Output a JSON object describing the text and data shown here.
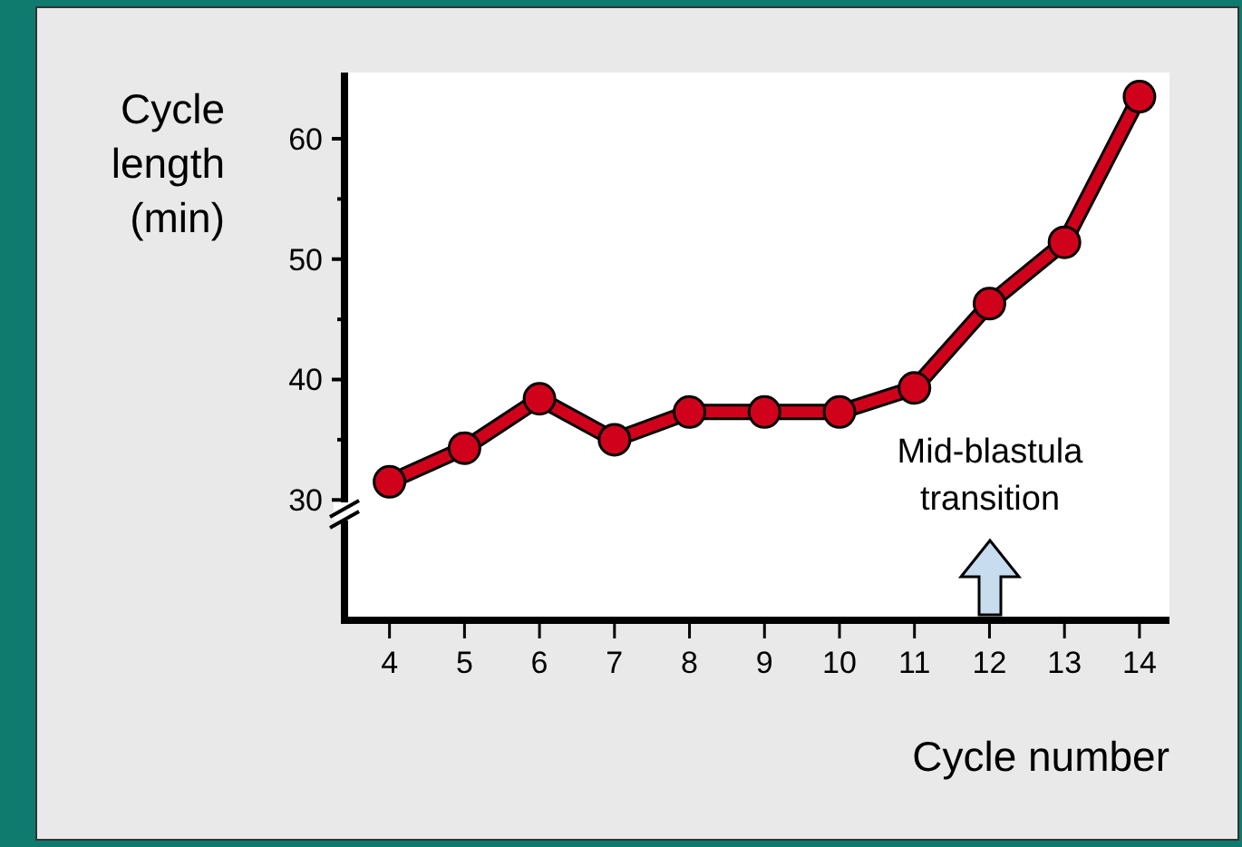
{
  "chart_data": {
    "type": "line",
    "xlabel": "Cycle number",
    "ylabel": "Cycle\nlength\n(min)",
    "x": [
      4,
      5,
      6,
      7,
      8,
      9,
      10,
      11,
      12,
      13,
      14
    ],
    "series": [
      {
        "color": "#d0021b",
        "values": [
          31.5,
          34.3,
          38.4,
          35,
          37.3,
          37.3,
          37.3,
          39.3,
          46.3,
          51.4,
          63.5
        ]
      }
    ],
    "xlim": [
      3.4,
      14.4
    ],
    "xticks": [
      4,
      5,
      6,
      7,
      8,
      9,
      10,
      11,
      12,
      13,
      14
    ],
    "ylim": [
      20,
      65.5
    ],
    "yticks": [
      30,
      {
        "value": 35,
        "label": null
      },
      40,
      {
        "value": 45,
        "label": null
      },
      50,
      {
        "value": 55,
        "label": null
      },
      60
    ],
    "marker": "circle",
    "line_style": "solid",
    "grid": false,
    "annotations": [
      "Mid-blastula\ntransition"
    ]
  }
}
